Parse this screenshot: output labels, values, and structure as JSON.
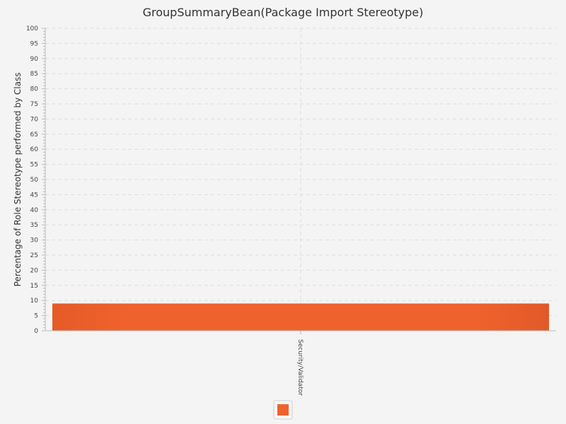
{
  "chart_data": {
    "type": "bar",
    "title": "GroupSummaryBean(Package Import Stereotype)",
    "xlabel": "",
    "ylabel": "Percentage of Role Stereotype performed by Class",
    "categories": [
      "Security/Validator"
    ],
    "series": [
      {
        "name": "",
        "values": [
          9
        ],
        "color": "#f0622d"
      }
    ],
    "ylim": [
      0,
      100
    ],
    "ytick_step": 5,
    "grid": true,
    "legend": "bottom-center"
  },
  "colors": {
    "background": "#f4f4f4",
    "grid": "#dddddd",
    "axis": "#bbbbbb",
    "bar": "#f0622d",
    "bar_dark": "#e05a28"
  }
}
